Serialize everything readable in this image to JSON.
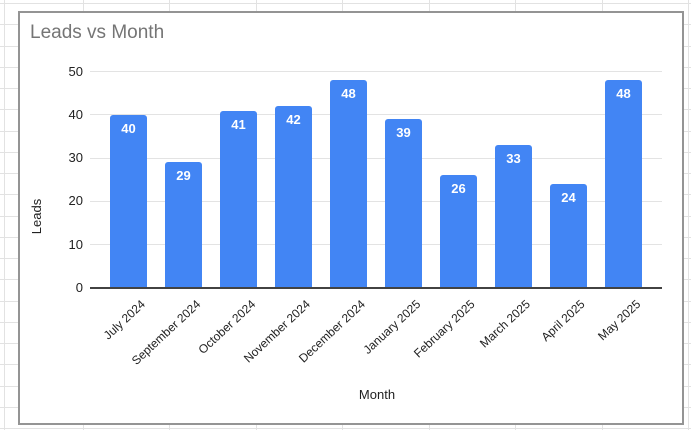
{
  "chart": {
    "title": "Leads vs Month",
    "x_axis_title": "Month",
    "y_axis_title": "Leads"
  },
  "chart_data": {
    "type": "bar",
    "title": "Leads vs Month",
    "xlabel": "Month",
    "ylabel": "Leads",
    "categories": [
      "July 2024",
      "September 2024",
      "October 2024",
      "November 2024",
      "December 2024",
      "January 2025",
      "February 2025",
      "March 2025",
      "April 2025",
      "May 2025"
    ],
    "values": [
      40,
      29,
      41,
      42,
      48,
      39,
      26,
      33,
      24,
      48
    ],
    "data_labels_shown": true,
    "ylim": [
      0,
      50
    ],
    "yticks": [
      0,
      10,
      20,
      30,
      40,
      50
    ],
    "grid": true,
    "legend_position": "none"
  },
  "colors": {
    "bar": "#4285f4",
    "bar_label": "#ffffff",
    "title": "#757575",
    "axis_label": "#222222",
    "gridline": "#e3e3e3",
    "baseline": "#424242",
    "widget_border": "#949494",
    "sheet_gridline": "#e2e2e2"
  }
}
